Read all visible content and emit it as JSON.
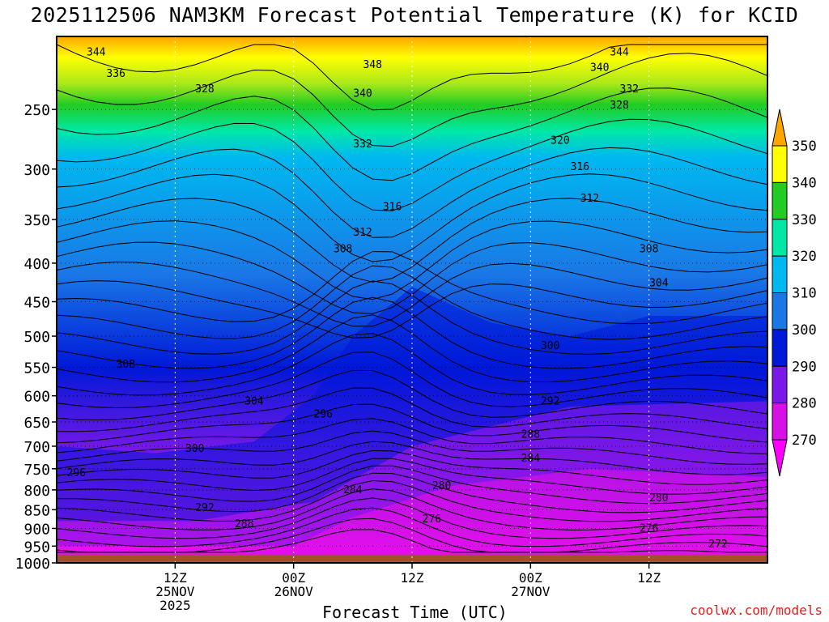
{
  "title": "2025112506 NAM3KM Forecast Potential Temperature (K) for KCID",
  "credit": "coolwx.com/models",
  "chart_data": {
    "type": "contour",
    "xlabel": "Forecast Time (UTC)",
    "ylabel": "",
    "y_ticks": [
      250,
      300,
      350,
      400,
      450,
      500,
      550,
      600,
      650,
      700,
      750,
      800,
      850,
      900,
      950,
      1000
    ],
    "ylim": [
      1000,
      200
    ],
    "y_scale": "log",
    "x_ticks": [
      {
        "lines": [
          "12Z",
          "25NOV",
          "2025"
        ]
      },
      {
        "lines": [
          "00Z",
          "26NOV"
        ]
      },
      {
        "lines": [
          "12Z"
        ]
      },
      {
        "lines": [
          "00Z",
          "27NOV"
        ]
      },
      {
        "lines": [
          "12Z"
        ]
      }
    ],
    "grid": true,
    "colorbar": {
      "labels": [
        350,
        340,
        330,
        320,
        310,
        300,
        290,
        280,
        270
      ],
      "colors": [
        "#ffa500",
        "#ffff00",
        "#22cc22",
        "#00e8a8",
        "#00b8f0",
        "#1a78e6",
        "#0018d8",
        "#7a18e8",
        "#d810e8",
        "#ff00ff"
      ]
    },
    "contour_labels": [
      {
        "value": "344",
        "t": 4,
        "p": 210
      },
      {
        "value": "336",
        "t": 6,
        "p": 224
      },
      {
        "value": "328",
        "t": 15,
        "p": 235
      },
      {
        "value": "348",
        "t": 32,
        "p": 218
      },
      {
        "value": "340",
        "t": 31,
        "p": 238
      },
      {
        "value": "332",
        "t": 31,
        "p": 278
      },
      {
        "value": "344",
        "t": 57,
        "p": 210
      },
      {
        "value": "340",
        "t": 55,
        "p": 220
      },
      {
        "value": "332",
        "t": 58,
        "p": 235
      },
      {
        "value": "328",
        "t": 57,
        "p": 247
      },
      {
        "value": "320",
        "t": 51,
        "p": 275
      },
      {
        "value": "316",
        "t": 53,
        "p": 298
      },
      {
        "value": "312",
        "t": 54,
        "p": 328
      },
      {
        "value": "316",
        "t": 34,
        "p": 337
      },
      {
        "value": "312",
        "t": 31,
        "p": 364
      },
      {
        "value": "308",
        "t": 29,
        "p": 383
      },
      {
        "value": "308",
        "t": 60,
        "p": 383
      },
      {
        "value": "304",
        "t": 61,
        "p": 425
      },
      {
        "value": "300",
        "t": 50,
        "p": 515
      },
      {
        "value": "292",
        "t": 50,
        "p": 610
      },
      {
        "value": "288",
        "t": 48,
        "p": 675
      },
      {
        "value": "284",
        "t": 48,
        "p": 727
      },
      {
        "value": "280",
        "t": 39,
        "p": 790
      },
      {
        "value": "280",
        "t": 61,
        "p": 820
      },
      {
        "value": "276",
        "t": 38,
        "p": 875
      },
      {
        "value": "276",
        "t": 60,
        "p": 900
      },
      {
        "value": "272",
        "t": 67,
        "p": 945
      },
      {
        "value": "308",
        "t": 7,
        "p": 545
      },
      {
        "value": "304",
        "t": 20,
        "p": 610
      },
      {
        "value": "300",
        "t": 14,
        "p": 705
      },
      {
        "value": "296",
        "t": 2,
        "p": 760
      },
      {
        "value": "296",
        "t": 27,
        "p": 635
      },
      {
        "value": "292",
        "t": 15,
        "p": 845
      },
      {
        "value": "288",
        "t": 19,
        "p": 888
      },
      {
        "value": "284",
        "t": 30,
        "p": 800
      }
    ]
  }
}
